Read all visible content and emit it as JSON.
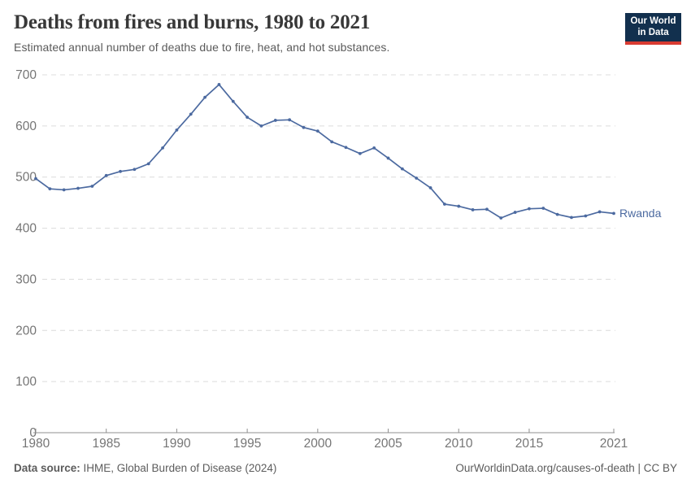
{
  "header": {
    "title": "Deaths from fires and burns, 1980 to 2021",
    "subtitle": "Estimated annual number of deaths due to fire, heat, and hot substances.",
    "logo": {
      "line1": "Our World",
      "line2": "in Data",
      "bg_color": "#12304e",
      "accent_color": "#d93b32"
    }
  },
  "chart_data": {
    "type": "line",
    "title": "Deaths from fires and burns, 1980 to 2021",
    "xlabel": "",
    "ylabel": "",
    "xlim": [
      1980,
      2021
    ],
    "ylim": [
      0,
      700
    ],
    "x_ticks": [
      1980,
      1985,
      1990,
      1995,
      2000,
      2005,
      2010,
      2015,
      2021
    ],
    "y_ticks": [
      0,
      100,
      200,
      300,
      400,
      500,
      600,
      700
    ],
    "grid": "horizontal-dashed",
    "legend_position": "line-end-label",
    "colors": {
      "line": "#4c6aa0",
      "gridline": "#dcdcdc",
      "axis": "#8f8f8f",
      "tick_text": "#757575"
    },
    "series": [
      {
        "name": "Rwanda",
        "color": "#4c6aa0",
        "x": [
          1980,
          1981,
          1982,
          1983,
          1984,
          1985,
          1986,
          1987,
          1988,
          1989,
          1990,
          1991,
          1992,
          1993,
          1994,
          1995,
          1996,
          1997,
          1998,
          1999,
          2000,
          2001,
          2002,
          2003,
          2004,
          2005,
          2006,
          2007,
          2008,
          2009,
          2010,
          2011,
          2012,
          2013,
          2014,
          2015,
          2016,
          2017,
          2018,
          2019,
          2020,
          2021
        ],
        "values": [
          497,
          477,
          475,
          478,
          482,
          503,
          511,
          515,
          526,
          557,
          592,
          623,
          656,
          681,
          648,
          617,
          600,
          611,
          612,
          597,
          590,
          569,
          558,
          546,
          557,
          537,
          516,
          498,
          479,
          447,
          443,
          436,
          437,
          420,
          431,
          438,
          439,
          427,
          421,
          424,
          432,
          429
        ]
      }
    ]
  },
  "footer": {
    "source_label": "Data source:",
    "source_text": " IHME, Global Burden of Disease (2024)",
    "credit": "OurWorldinData.org/causes-of-death | CC BY"
  }
}
